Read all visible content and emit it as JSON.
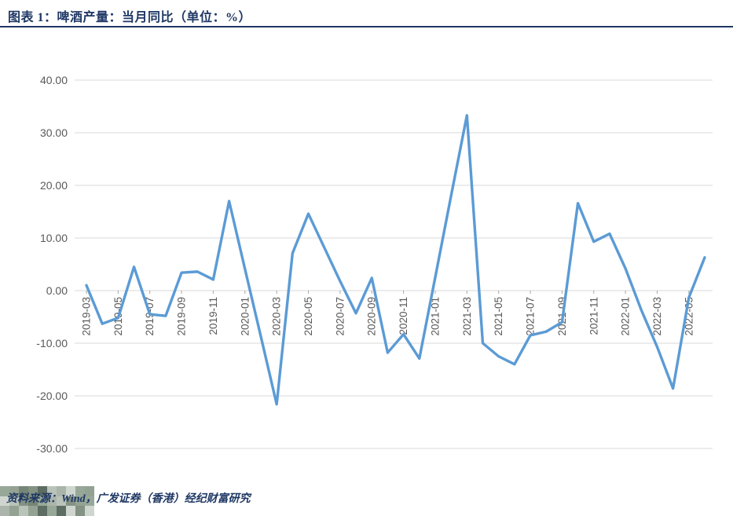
{
  "header": {
    "title": "图表 1：啤酒产量：当月同比（单位：%）"
  },
  "footer": {
    "source": "资料来源：Wind，广发证券（香港）经纪财富研究"
  },
  "colors": {
    "accent": "#1F3864",
    "line": "#5B9BD5",
    "grid": "#D9D9D9",
    "tick": "#A6A6A6",
    "axis_text": "#595959"
  },
  "watermark": {
    "palette": [
      "#93a493",
      "#b7c0b7",
      "#6f806f",
      "#cdd4cd",
      "#55665b",
      "#8e9e8e",
      "#a7b2a7",
      "#7d8d7d"
    ]
  },
  "chart_data": {
    "type": "line",
    "title": "啤酒产量：当月同比（单位：%）",
    "xlabel": "",
    "ylabel": "",
    "ylim": [
      -30,
      40
    ],
    "ytick_step": 10,
    "ytick_labels": [
      "40.00",
      "30.00",
      "20.00",
      "10.00",
      "0.00",
      "-10.00",
      "-20.00",
      "-30.00"
    ],
    "grid": true,
    "legend": false,
    "line_color": "#5B9BD5",
    "x": [
      "2019-03",
      "2019-04",
      "2019-05",
      "2019-06",
      "2019-07",
      "2019-08",
      "2019-09",
      "2019-10",
      "2019-11",
      "2019-12",
      "2020-01",
      "2020-02",
      "2020-03",
      "2020-04",
      "2020-05",
      "2020-06",
      "2020-07",
      "2020-08",
      "2020-09",
      "2020-10",
      "2020-11",
      "2020-12",
      "2021-01",
      "2021-02",
      "2021-03",
      "2021-04",
      "2021-05",
      "2021-06",
      "2021-07",
      "2021-08",
      "2021-09",
      "2021-10",
      "2021-11",
      "2021-12",
      "2022-01",
      "2022-02",
      "2022-03",
      "2022-04",
      "2022-05",
      "2022-06"
    ],
    "values": [
      1.0,
      -6.3,
      -5.2,
      4.5,
      -4.5,
      -4.8,
      3.4,
      3.6,
      2.1,
      17.0,
      4.1,
      -8.7,
      -21.6,
      7.1,
      14.6,
      8.2,
      1.8,
      -4.3,
      2.4,
      -11.8,
      -8.3,
      -12.9,
      2.5,
      18.0,
      33.3,
      -10.0,
      -12.5,
      -14.0,
      -8.5,
      -7.8,
      -6.0,
      16.6,
      9.3,
      10.8,
      4.2,
      -3.7,
      -10.7,
      -18.6,
      -1.3,
      6.3
    ],
    "x_tick_labels": [
      "2019-03",
      "2019-05",
      "2019-07",
      "2019-09",
      "2019-11",
      "2020-01",
      "2020-03",
      "2020-05",
      "2020-07",
      "2020-09",
      "2020-11",
      "2021-01",
      "2021-03",
      "2021-05",
      "2021-07",
      "2021-09",
      "2021-11",
      "2022-01",
      "2022-03",
      "2022-05"
    ]
  }
}
